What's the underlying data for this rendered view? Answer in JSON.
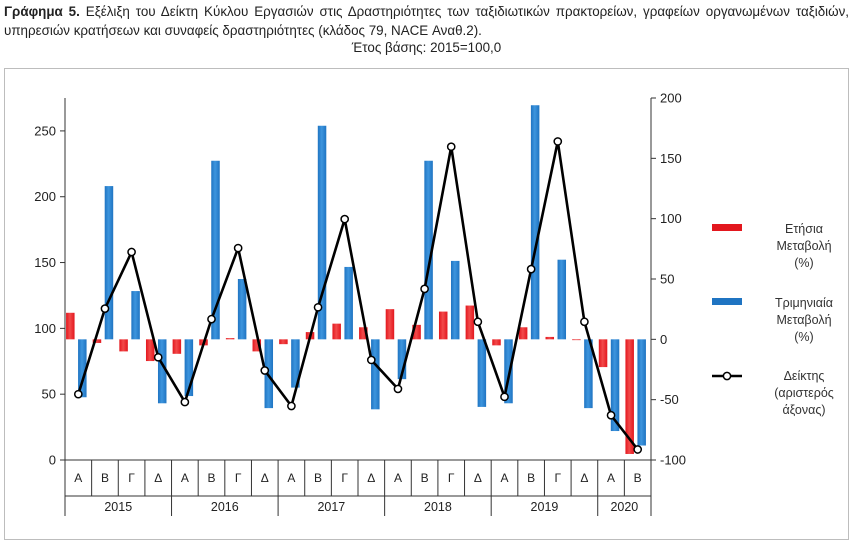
{
  "figure": {
    "label": "Γράφημα 5.",
    "title": "Εξέλιξη του Δείκτη Κύκλου Εργασιών στις Δραστηριότητες των ταξιδιωτικών πρακτορείων, γραφείων οργανωμένων ταξιδιών, υπηρεσιών κρατήσεων και συναφείς δραστηριότητες (κλάδος 79, NACE Αναθ.2).",
    "subtitle": "Έτος βάσης: 2015=100,0"
  },
  "colors": {
    "annual": "#e3171e",
    "quarterly": "#1f74c2",
    "index": "#000000"
  },
  "chart_data": {
    "type": "bar",
    "title": "Εξέλιξη του Δείκτη Κύκλου Εργασιών στις Δραστηριότητες των ταξιδιωτικών πρακτορείων, γραφείων οργανωμένων ταξιδιών, υπηρεσιών κρατήσεων και συναφείς δραστηριότητες (κλάδος 79, NACE Αναθ.2).",
    "categories": [
      "Α",
      "Β",
      "Γ",
      "Δ",
      "Α",
      "Β",
      "Γ",
      "Δ",
      "Α",
      "Β",
      "Γ",
      "Δ",
      "Α",
      "Β",
      "Γ",
      "Δ",
      "Α",
      "Β",
      "Γ",
      "Δ",
      "Α",
      "Β"
    ],
    "groups": [
      {
        "label": "2015",
        "count": 4
      },
      {
        "label": "2016",
        "count": 4
      },
      {
        "label": "2017",
        "count": 4
      },
      {
        "label": "2018",
        "count": 4
      },
      {
        "label": "2019",
        "count": 4
      },
      {
        "label": "2020",
        "count": 2
      }
    ],
    "left_axis": {
      "min": 0,
      "max": 275,
      "ticks": [
        0,
        50,
        100,
        150,
        200,
        250
      ]
    },
    "right_axis": {
      "min": -100,
      "max": 200,
      "ticks": [
        -100,
        -50,
        0,
        50,
        100,
        150,
        200
      ]
    },
    "series": [
      {
        "name": "Ετήσια Μεταβολή (%)",
        "kind": "bar",
        "axis": "right",
        "values": [
          22,
          -3,
          -10,
          -18,
          -12,
          -5,
          1,
          -10,
          -4,
          6,
          13,
          10,
          25,
          12,
          23,
          28,
          -5,
          10,
          2,
          0,
          -23,
          -95
        ]
      },
      {
        "name": "Τριμηνιαία Μεταβολή (%)",
        "kind": "bar",
        "axis": "right",
        "values": [
          -48,
          127,
          40,
          -53,
          -47,
          148,
          50,
          -57,
          -40,
          177,
          60,
          -58,
          -33,
          148,
          65,
          -56,
          -53,
          194,
          66,
          -57,
          -76,
          -88
        ]
      },
      {
        "name": "Δείκτης (αριστερός άξονας)",
        "kind": "line",
        "axis": "left",
        "values": [
          50,
          115,
          158,
          78,
          44,
          107,
          161,
          68,
          41,
          116,
          183,
          76,
          54,
          130,
          238,
          105,
          48,
          145,
          242,
          105,
          34,
          8
        ]
      }
    ],
    "legend_position": "right",
    "grid": false
  }
}
